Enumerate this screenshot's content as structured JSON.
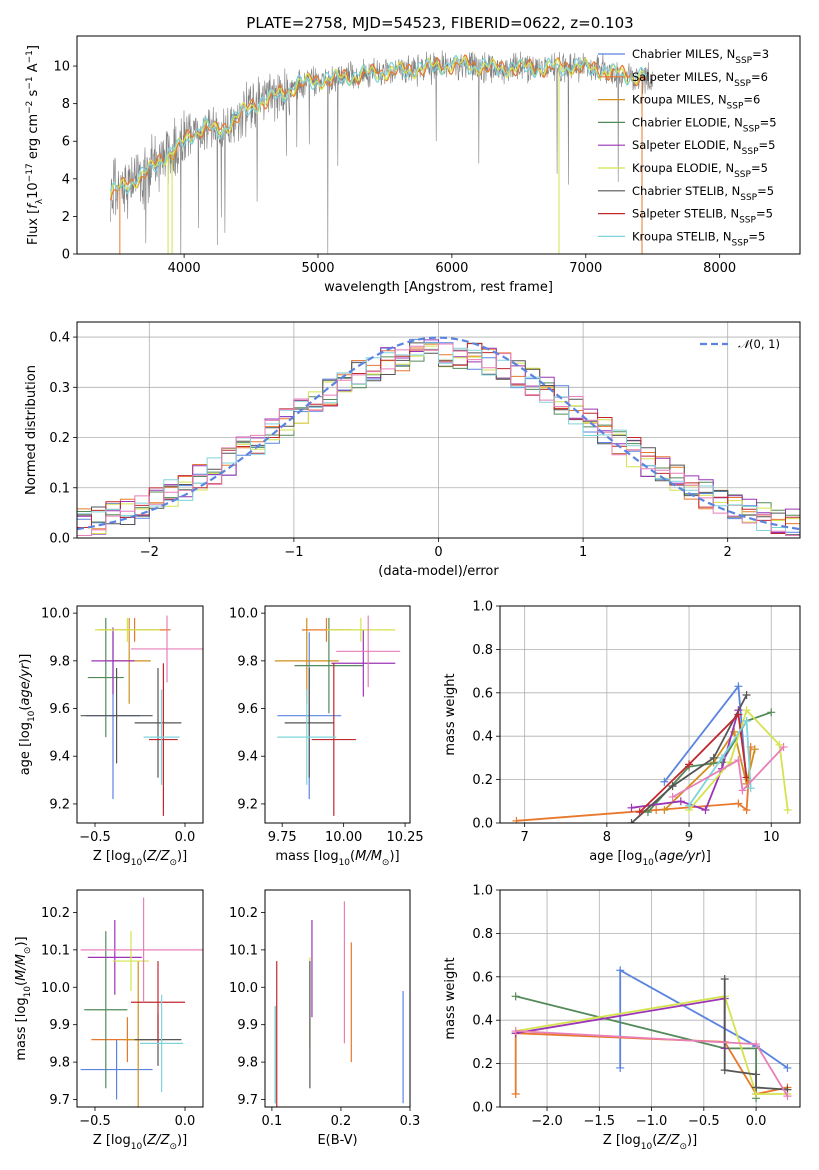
{
  "title": "PLATE=2758, MJD=54523, FIBERID=0622, z=0.103",
  "colors": {
    "chabrier_miles": "#5b84e0",
    "salpeter_miles": "#e8782c",
    "kroupa_miles": "#d18f1c",
    "chabrier_elodie": "#548a5a",
    "salpeter_elodie": "#9b34b5",
    "kroupa_elodie": "#d4e34e",
    "chabrier_stelib": "#555555",
    "salpeter_stelib": "#c1282d",
    "kroupa_stelib": "#7fd4dc",
    "pink": "#e87fb8",
    "data": "#808080",
    "normal": "#5b84e0"
  },
  "chart_data": [
    {
      "id": "spectrum",
      "type": "line",
      "xlabel": "wavelength [Angstrom, rest frame]",
      "ylabel": "Flux [f_λ10^-17 erg cm^-2 s^-1 A^-1]",
      "xlim": [
        3200,
        8600
      ],
      "ylim": [
        0,
        11.6
      ],
      "xticks": [
        "4000",
        "5000",
        "6000",
        "7000",
        "8000"
      ],
      "yticks": [
        "0",
        "2",
        "4",
        "6",
        "8",
        "10"
      ],
      "legend_placement": "top-right",
      "legend": [
        "Chabrier MILES, N_SSP=3",
        "Salpeter MILES, N_SSP=6",
        "Kroupa MILES, N_SSP=6",
        "Chabrier ELODIE, N_SSP=5",
        "Salpeter ELODIE, N_SSP=5",
        "Kroupa ELODIE, N_SSP=5",
        "Chabrier STELIB, N_SSP=5",
        "Salpeter STELIB, N_SSP=5",
        "Kroupa STELIB, N_SSP=5"
      ],
      "continuum": {
        "x": [
          3450,
          3550,
          3650,
          3750,
          3850,
          3950,
          4050,
          4150,
          4250,
          4350,
          4450,
          4550,
          4650,
          4750,
          4850,
          4950,
          5100,
          5300,
          5500,
          5700,
          5900,
          6100,
          6300,
          6500,
          6700,
          6900,
          7100,
          7300,
          7500
        ],
        "y": [
          3.2,
          3.6,
          4.0,
          4.5,
          5.2,
          5.6,
          6.3,
          6.8,
          6.5,
          7.0,
          7.6,
          8.0,
          8.3,
          8.6,
          9.0,
          9.2,
          9.3,
          9.5,
          9.7,
          9.8,
          10.0,
          10.1,
          9.9,
          9.9,
          9.9,
          10.0,
          9.8,
          9.5,
          9.4
        ]
      }
    },
    {
      "id": "residuals",
      "type": "histogram",
      "xlabel": "(data-model)/error",
      "ylabel": "Normed distribution",
      "xlim": [
        -2.5,
        2.5
      ],
      "ylim": [
        0,
        0.43
      ],
      "xticks": [
        "−2",
        "−1",
        "0",
        "1",
        "2"
      ],
      "yticks": [
        "0.0",
        "0.1",
        "0.2",
        "0.3",
        "0.4"
      ],
      "legend": [
        "N(0,1)"
      ],
      "legend_placement": "top-right",
      "grid": true,
      "bins": {
        "start": -2.5,
        "width": 0.1,
        "count": 50
      }
    },
    {
      "id": "age_vs_Z",
      "type": "errorbar",
      "xlabel": "Z [log10(Z/Z⊙)]",
      "ylabel": "age  [log10(age/yr)]",
      "xlim": [
        -0.6,
        0.1
      ],
      "ylim": [
        9.12,
        10.03
      ],
      "xticks": [
        "−0.5",
        "0.0"
      ],
      "yticks": [
        "9.2",
        "9.4",
        "9.6",
        "9.8",
        "10.0"
      ],
      "points": [
        {
          "x": -0.4,
          "xerr": 0.15,
          "y": 9.57,
          "yerr": 0.35,
          "color": "chabrier_miles"
        },
        {
          "x": -0.28,
          "xerr": 0.2,
          "y": 9.93,
          "yerr": 0.05,
          "color": "salpeter_miles"
        },
        {
          "x": -0.31,
          "xerr": 0.12,
          "y": 9.8,
          "yerr": 0.18,
          "color": "kroupa_miles"
        },
        {
          "x": -0.44,
          "xerr": 0.1,
          "y": 9.73,
          "yerr": 0.25,
          "color": "chabrier_elodie"
        },
        {
          "x": -0.4,
          "xerr": 0.12,
          "y": 9.8,
          "yerr": 0.14,
          "color": "salpeter_elodie"
        },
        {
          "x": -0.32,
          "xerr": 0.18,
          "y": 9.93,
          "yerr": 0.05,
          "color": "kroupa_elodie"
        },
        {
          "x": -0.15,
          "xerr": 0.13,
          "y": 9.54,
          "yerr": 0.23,
          "color": "chabrier_stelib"
        },
        {
          "x": -0.12,
          "xerr": 0.08,
          "y": 9.47,
          "yerr": 0.32,
          "color": "salpeter_stelib"
        },
        {
          "x": -0.13,
          "xerr": 0.1,
          "y": 9.48,
          "yerr": 0.2,
          "color": "kroupa_stelib"
        },
        {
          "x": -0.1,
          "xerr": 0.2,
          "y": 9.85,
          "yerr": 0.14,
          "color": "pink"
        },
        {
          "x": -0.38,
          "xerr": 0.2,
          "y": 9.57,
          "yerr": 0.2,
          "color": "chabrier_stelib"
        }
      ]
    },
    {
      "id": "age_vs_mass",
      "type": "errorbar",
      "xlabel": "mass [log10(M/M⊙)]",
      "ylabel": "",
      "xlim": [
        9.68,
        10.27
      ],
      "ylim": [
        9.12,
        10.03
      ],
      "xticks": [
        "9.75",
        "10.00",
        "10.25"
      ],
      "yticks": [
        "9.2",
        "9.4",
        "9.6",
        "9.8",
        "10.0"
      ],
      "points": [
        {
          "x": 9.86,
          "xerr": 0.13,
          "y": 9.57,
          "yerr": 0.35,
          "color": "chabrier_miles"
        },
        {
          "x": 9.93,
          "xerr": 0.1,
          "y": 9.93,
          "yerr": 0.05,
          "color": "salpeter_miles"
        },
        {
          "x": 9.85,
          "xerr": 0.13,
          "y": 9.8,
          "yerr": 0.18,
          "color": "kroupa_miles"
        },
        {
          "x": 9.94,
          "xerr": 0.14,
          "y": 9.78,
          "yerr": 0.2,
          "color": "chabrier_elodie"
        },
        {
          "x": 10.08,
          "xerr": 0.13,
          "y": 9.79,
          "yerr": 0.14,
          "color": "salpeter_elodie"
        },
        {
          "x": 10.07,
          "xerr": 0.14,
          "y": 9.93,
          "yerr": 0.05,
          "color": "kroupa_elodie"
        },
        {
          "x": 9.86,
          "xerr": 0.1,
          "y": 9.54,
          "yerr": 0.23,
          "color": "chabrier_stelib"
        },
        {
          "x": 9.96,
          "xerr": 0.09,
          "y": 9.47,
          "yerr": 0.32,
          "color": "salpeter_stelib"
        },
        {
          "x": 9.85,
          "xerr": 0.12,
          "y": 9.48,
          "yerr": 0.2,
          "color": "kroupa_stelib"
        },
        {
          "x": 10.1,
          "xerr": 0.13,
          "y": 9.84,
          "yerr": 0.15,
          "color": "pink"
        }
      ]
    },
    {
      "id": "weight_vs_age",
      "type": "line",
      "xlabel": "age  [log10(age/yr)]",
      "ylabel": "mass weight",
      "xlim": [
        6.7,
        10.35
      ],
      "ylim": [
        0,
        1
      ],
      "xticks": [
        "7",
        "8",
        "9",
        "10"
      ],
      "yticks": [
        "0.0",
        "0.2",
        "0.4",
        "0.6",
        "0.8",
        "1.0"
      ],
      "grid": true,
      "series": [
        {
          "color": "chabrier_miles",
          "x": [
            8.7,
            9.6,
            9.7
          ],
          "y": [
            0.19,
            0.63,
            0.18
          ]
        },
        {
          "color": "salpeter_miles",
          "x": [
            6.9,
            8.6,
            9.6,
            9.7,
            9.75
          ],
          "y": [
            0.01,
            0.06,
            0.09,
            0.06,
            0.35
          ]
        },
        {
          "color": "kroupa_miles",
          "x": [
            8.7,
            9.3,
            9.55,
            9.7,
            9.8
          ],
          "y": [
            0.06,
            0.28,
            0.42,
            0.18,
            0.34
          ]
        },
        {
          "color": "chabrier_elodie",
          "x": [
            8.5,
            9.0,
            9.4,
            9.7,
            10.0
          ],
          "y": [
            0.05,
            0.26,
            0.28,
            0.47,
            0.51
          ]
        },
        {
          "color": "salpeter_elodie",
          "x": [
            8.3,
            8.9,
            9.2,
            9.4,
            9.6
          ],
          "y": [
            0.07,
            0.1,
            0.06,
            0.25,
            0.52
          ]
        },
        {
          "color": "kroupa_elodie",
          "x": [
            9.0,
            9.5,
            9.7,
            10.1,
            10.2
          ],
          "y": [
            0.06,
            0.28,
            0.52,
            0.36,
            0.06
          ]
        },
        {
          "color": "chabrier_stelib",
          "x": [
            8.3,
            8.8,
            9.3,
            9.7
          ],
          "y": [
            0.0,
            0.17,
            0.3,
            0.59
          ]
        },
        {
          "color": "salpeter_stelib",
          "x": [
            8.4,
            9.0,
            9.6,
            9.7
          ],
          "y": [
            0.05,
            0.27,
            0.5,
            0.21
          ]
        },
        {
          "color": "kroupa_stelib",
          "x": [
            9.0,
            9.4,
            9.7,
            9.75
          ],
          "y": [
            0.08,
            0.3,
            0.47,
            0.16
          ]
        },
        {
          "color": "pink",
          "x": [
            8.8,
            9.6,
            9.65,
            10.15
          ],
          "y": [
            0.12,
            0.29,
            0.15,
            0.35
          ]
        }
      ]
    },
    {
      "id": "mass_vs_Z",
      "type": "errorbar",
      "xlabel": "Z [log10(Z/Z⊙)]",
      "ylabel": "mass [log10(M/M⊙)]",
      "xlim": [
        -0.6,
        0.1
      ],
      "ylim": [
        9.68,
        10.26
      ],
      "xticks": [
        "−0.5",
        "0.0"
      ],
      "yticks": [
        "9.7",
        "9.8",
        "9.9",
        "10.0",
        "10.1",
        "10.2"
      ],
      "points": [
        {
          "x": -0.38,
          "xerr": 0.2,
          "y": 9.78,
          "yerr": 0.08,
          "color": "chabrier_miles"
        },
        {
          "x": -0.32,
          "xerr": 0.2,
          "y": 9.86,
          "yerr": 0.06,
          "color": "salpeter_miles"
        },
        {
          "x": -0.26,
          "xerr": 0.08,
          "y": 9.86,
          "yerr": 0.21,
          "color": "kroupa_miles"
        },
        {
          "x": -0.44,
          "xerr": 0.12,
          "y": 9.94,
          "yerr": 0.21,
          "color": "chabrier_elodie"
        },
        {
          "x": -0.39,
          "xerr": 0.15,
          "y": 10.08,
          "yerr": 0.1,
          "color": "salpeter_elodie"
        },
        {
          "x": -0.3,
          "xerr": 0.1,
          "y": 10.07,
          "yerr": 0.08,
          "color": "kroupa_elodie"
        },
        {
          "x": -0.15,
          "xerr": 0.13,
          "y": 9.86,
          "yerr": 0.07,
          "color": "chabrier_stelib"
        },
        {
          "x": -0.15,
          "xerr": 0.15,
          "y": 9.96,
          "yerr": 0.11,
          "color": "salpeter_stelib"
        },
        {
          "x": -0.13,
          "xerr": 0.12,
          "y": 9.85,
          "yerr": 0.13,
          "color": "kroupa_stelib"
        },
        {
          "x": -0.23,
          "xerr": 0.35,
          "y": 10.1,
          "yerr": 0.14,
          "color": "pink"
        }
      ]
    },
    {
      "id": "mass_vs_ebv",
      "type": "errorbar",
      "xlabel": "E(B-V)",
      "ylabel": "",
      "xlim": [
        0.09,
        0.3
      ],
      "ylim": [
        9.68,
        10.26
      ],
      "xticks": [
        "0.1",
        "0.2",
        "0.3"
      ],
      "yticks": [
        "9.7",
        "9.8",
        "9.9",
        "10.0",
        "10.1",
        "10.2"
      ],
      "points": [
        {
          "x": 0.29,
          "xerr": 0.0,
          "y": 9.84,
          "yerr": 0.15,
          "color": "chabrier_miles"
        },
        {
          "x": 0.215,
          "xerr": 0.0,
          "y": 9.96,
          "yerr": 0.16,
          "color": "salpeter_miles"
        },
        {
          "x": 0.105,
          "xerr": 0.0,
          "y": 9.82,
          "yerr": 0.13,
          "color": "chabrier_elodie"
        },
        {
          "x": 0.158,
          "xerr": 0.0,
          "y": 10.05,
          "yerr": 0.13,
          "color": "salpeter_elodie"
        },
        {
          "x": 0.155,
          "xerr": 0.0,
          "y": 9.96,
          "yerr": 0.12,
          "color": "kroupa_elodie"
        },
        {
          "x": 0.107,
          "xerr": 0.0,
          "y": 9.87,
          "yerr": 0.2,
          "color": "salpeter_stelib"
        },
        {
          "x": 0.155,
          "xerr": 0.0,
          "y": 9.9,
          "yerr": 0.17,
          "color": "chabrier_stelib"
        },
        {
          "x": 0.105,
          "xerr": 0.0,
          "y": 9.82,
          "yerr": 0.13,
          "color": "kroupa_stelib"
        },
        {
          "x": 0.205,
          "xerr": 0.0,
          "y": 10.04,
          "yerr": 0.19,
          "color": "pink"
        }
      ]
    },
    {
      "id": "weight_vs_Z",
      "type": "line",
      "xlabel": "Z [log10(Z/Z⊙)]",
      "ylabel": "mass weight",
      "xlim": [
        -2.45,
        0.42
      ],
      "ylim": [
        0,
        1
      ],
      "xticks": [
        "−2.0",
        "−1.5",
        "−1.0",
        "−0.5",
        "0.0"
      ],
      "yticks": [
        "0.0",
        "0.2",
        "0.4",
        "0.6",
        "0.8",
        "1.0"
      ],
      "grid": true,
      "series": [
        {
          "color": "chabrier_miles",
          "x": [
            -1.3,
            -1.3,
            0.0,
            0.3
          ],
          "y": [
            0.18,
            0.63,
            0.28,
            0.18
          ]
        },
        {
          "color": "salpeter_miles",
          "x": [
            -2.3,
            -2.3,
            -0.3,
            0.0,
            0.3
          ],
          "y": [
            0.06,
            0.34,
            0.3,
            0.06,
            0.09
          ]
        },
        {
          "color": "chabrier_elodie",
          "x": [
            -2.3,
            -0.3,
            0.0,
            0.0
          ],
          "y": [
            0.51,
            0.27,
            0.27,
            0.04
          ]
        },
        {
          "color": "salpeter_elodie",
          "x": [
            -2.3,
            -0.3,
            -0.3
          ],
          "y": [
            0.34,
            0.5,
            0.27
          ]
        },
        {
          "color": "kroupa_elodie",
          "x": [
            -2.3,
            -0.3,
            0.0,
            0.3
          ],
          "y": [
            0.35,
            0.51,
            0.06,
            0.06
          ]
        },
        {
          "color": "chabrier_stelib",
          "x": [
            -0.3,
            -0.3,
            0.0,
            0.0,
            0.3
          ],
          "y": [
            0.59,
            0.17,
            0.15,
            0.09,
            0.08
          ]
        },
        {
          "color": "pink",
          "x": [
            -2.3,
            0.0,
            0.3
          ],
          "y": [
            0.35,
            0.29,
            0.05
          ]
        }
      ]
    }
  ]
}
